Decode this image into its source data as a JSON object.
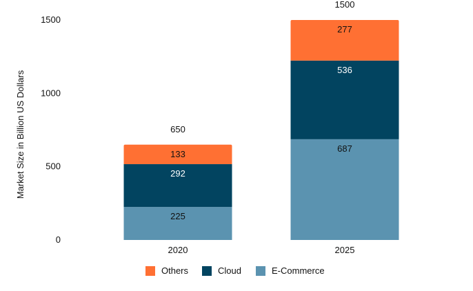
{
  "chart_data": {
    "type": "bar",
    "stacked": true,
    "title": "",
    "xlabel": "",
    "ylabel": "Market Size in Billion US Dollars",
    "categories": [
      "2020",
      "2025"
    ],
    "ylim": [
      0,
      1500
    ],
    "yticks": [
      "0",
      "500",
      "1000",
      "1500"
    ],
    "totals": [
      "650",
      "1500"
    ],
    "legend_position": "bottom",
    "grid": false,
    "series": [
      {
        "name": "E-Commerce",
        "values": [
          225,
          687
        ],
        "labels": [
          "225",
          "687"
        ],
        "color": "#5b93b0",
        "label_color": "#111111"
      },
      {
        "name": "Cloud",
        "values": [
          292,
          536
        ],
        "labels": [
          "292",
          "536"
        ],
        "color": "#024460",
        "label_color": "#ffffff"
      },
      {
        "name": "Others",
        "values": [
          133,
          277
        ],
        "labels": [
          "133",
          "277"
        ],
        "color": "#ff7033",
        "label_color": "#111111"
      }
    ],
    "legend_order": [
      "Others",
      "Cloud",
      "E-Commerce"
    ]
  }
}
